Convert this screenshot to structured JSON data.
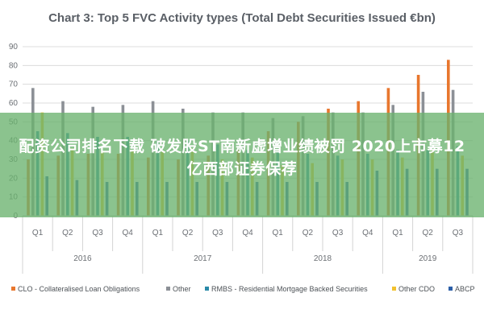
{
  "chart_data": {
    "type": "bar",
    "title": "Chart 3: Top 5 FVC Activity types (Total Debt Securities Issued €bn)",
    "categories": [
      "Q1",
      "Q2",
      "Q3",
      "Q4",
      "Q1",
      "Q2",
      "Q3",
      "Q4",
      "Q1",
      "Q2",
      "Q3",
      "Q4",
      "Q1",
      "Q2",
      "Q3"
    ],
    "years": [
      {
        "label": "2016",
        "span": 4
      },
      {
        "label": "2017",
        "span": 4
      },
      {
        "label": "2018",
        "span": 4
      },
      {
        "label": "2019",
        "span": 3
      }
    ],
    "yticks": [
      0,
      10,
      20,
      30,
      40,
      50,
      60,
      70,
      80,
      90
    ],
    "ylim": [
      0,
      90
    ],
    "grid": true,
    "legend_position": "bottom",
    "series": [
      {
        "name": "CLO - Collateralised Loan Obligations",
        "color": "#e8772e",
        "values": [
          30,
          32,
          33,
          33,
          31,
          30,
          32,
          35,
          45,
          50,
          57,
          61,
          68,
          75,
          83
        ]
      },
      {
        "name": "Other",
        "color": "#8c9096",
        "values": [
          68,
          61,
          58,
          59,
          61,
          57,
          55,
          55,
          52,
          53,
          55,
          55,
          59,
          66,
          67
        ]
      },
      {
        "name": "RMBS - Residential Mortgage Backed Securities",
        "color": "#2a8aa8",
        "values": [
          45,
          44,
          42,
          42,
          40,
          40,
          38,
          35,
          34,
          33,
          32,
          33,
          35,
          35,
          37
        ]
      },
      {
        "name": "Other CDO",
        "color": "#f2c12e",
        "values": [
          55,
          36,
          34,
          35,
          34,
          36,
          30,
          31,
          27,
          28,
          30,
          30,
          31,
          35,
          32
        ]
      },
      {
        "name": "ABCP",
        "color": "#2c5fa8",
        "values": [
          21,
          19,
          18,
          18,
          18,
          18,
          18,
          18,
          18,
          18,
          18,
          24,
          25,
          25,
          25
        ]
      }
    ]
  },
  "overlay": {
    "text": "配资公司排名下载 破发股ST南新虚增业绩被罚 2020上市募12亿西部证券保荐"
  }
}
